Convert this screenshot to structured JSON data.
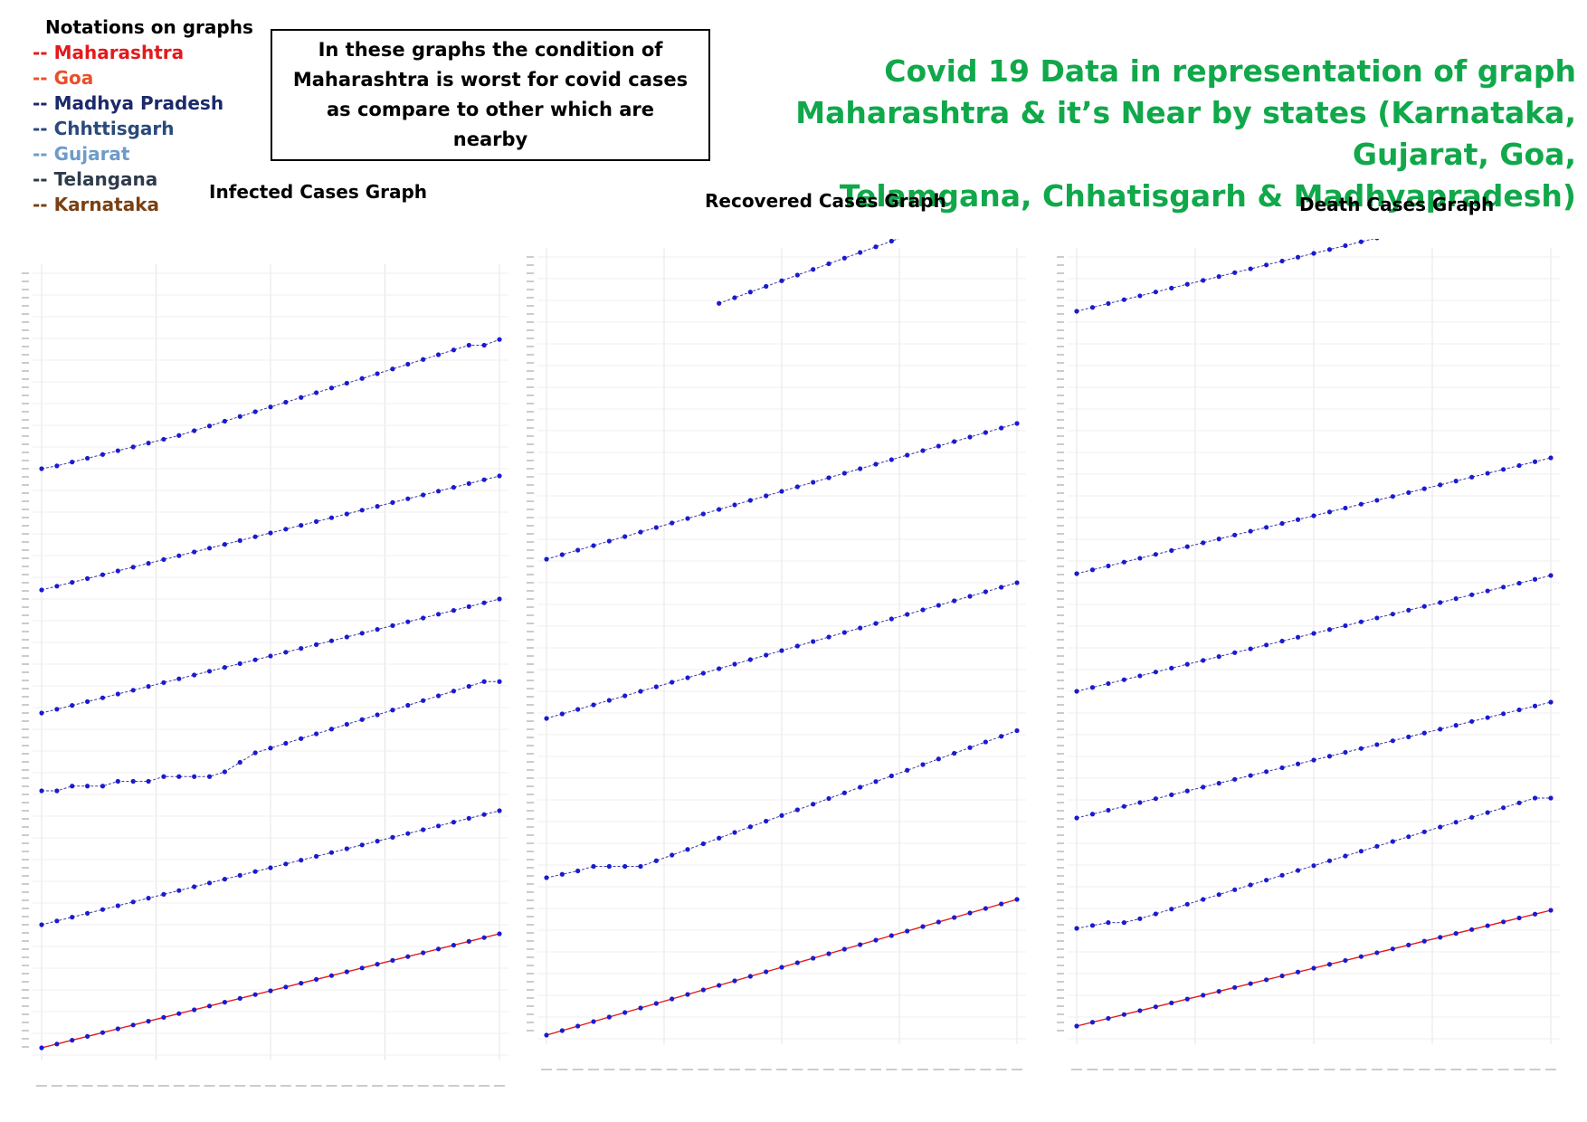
{
  "legend": {
    "title": "Notations on graphs",
    "items": [
      {
        "label": "-- Maharashtra",
        "color": "#e31a1c"
      },
      {
        "label": "-- Goa",
        "color": "#e8502a"
      },
      {
        "label": "-- Madhya Pradesh",
        "color": "#1c2a6b"
      },
      {
        "label": "-- Chhttisgarh",
        "color": "#2a4a7a"
      },
      {
        "label": "-- Gujarat",
        "color": "#6f9bc8"
      },
      {
        "label": "-- Telangana",
        "color": "#2f3b4b"
      },
      {
        "label": "-- Karnataka",
        "color": "#7a3f12"
      }
    ]
  },
  "note": {
    "text": "In these graphs the condition of Maharashtra is  worst for covid cases as compare to other which are nearby"
  },
  "header": {
    "line1": "Covid  19 Data in representation of graph",
    "line2": "Maharashtra & it’s Near by states (Karnataka, Gujarat, Goa,",
    "line3": "Telamgana, Chhatisgarh & Madhyapradesh)"
  },
  "colors": {
    "title_green": "#10a84a",
    "marker_blue": "#1a1ad0",
    "maharashtra_line": "#e31a1c"
  },
  "chart_data": [
    {
      "type": "line",
      "title": "Infected Cases Graph",
      "series": [
        {
          "values": [
            null,
            null,
            null,
            null,
            null,
            null,
            null,
            null,
            null,
            null,
            null,
            null,
            1.6,
            1.62,
            1.64,
            1.67,
            1.7,
            1.73,
            1.76,
            1.79,
            1.82,
            1.86,
            1.9,
            1.94,
            1.98,
            2.02,
            2.06,
            2.1,
            2.14,
            2.18,
            2.22
          ]
        },
        {
          "values": [
            0.0,
            0.03,
            0.07,
            0.11,
            0.15,
            0.19,
            0.23,
            0.27,
            0.31,
            0.35,
            0.4,
            0.45,
            0.5,
            0.55,
            0.6,
            0.65,
            0.7,
            0.75,
            0.8,
            0.85,
            0.9,
            0.95,
            1.0,
            1.05,
            1.1,
            1.15,
            1.2,
            1.25,
            1.3,
            1.3,
            1.36
          ]
        },
        {
          "values": [
            0.0,
            0.04,
            0.08,
            0.12,
            0.16,
            0.2,
            0.24,
            0.28,
            0.32,
            0.36,
            0.4,
            0.44,
            0.48,
            0.52,
            0.56,
            0.6,
            0.64,
            0.68,
            0.72,
            0.76,
            0.8,
            0.84,
            0.88,
            0.92,
            0.96,
            1.0,
            1.04,
            1.08,
            1.12,
            1.16,
            1.2
          ]
        },
        {
          "values": [
            0.0,
            0.04,
            0.08,
            0.12,
            0.16,
            0.2,
            0.24,
            0.28,
            0.32,
            0.36,
            0.4,
            0.44,
            0.48,
            0.52,
            0.56,
            0.6,
            0.64,
            0.68,
            0.72,
            0.76,
            0.8,
            0.84,
            0.88,
            0.92,
            0.96,
            1.0,
            1.04,
            1.08,
            1.12,
            1.16,
            1.2
          ]
        },
        {
          "values": [
            0.0,
            0.0,
            0.05,
            0.05,
            0.05,
            0.1,
            0.1,
            0.1,
            0.15,
            0.15,
            0.15,
            0.15,
            0.2,
            0.3,
            0.4,
            0.45,
            0.5,
            0.55,
            0.6,
            0.65,
            0.7,
            0.75,
            0.8,
            0.85,
            0.9,
            0.95,
            1.0,
            1.05,
            1.1,
            1.15,
            1.15
          ]
        },
        {
          "values": [
            0.0,
            0.04,
            0.08,
            0.12,
            0.16,
            0.2,
            0.24,
            0.28,
            0.32,
            0.36,
            0.4,
            0.44,
            0.48,
            0.52,
            0.56,
            0.6,
            0.64,
            0.68,
            0.72,
            0.76,
            0.8,
            0.84,
            0.88,
            0.92,
            0.96,
            1.0,
            1.04,
            1.08,
            1.12,
            1.16,
            1.2
          ]
        },
        {
          "values": [
            0.0,
            0.04,
            0.08,
            0.12,
            0.16,
            0.2,
            0.24,
            0.28,
            0.32,
            0.36,
            0.4,
            0.44,
            0.48,
            0.52,
            0.56,
            0.6,
            0.64,
            0.68,
            0.72,
            0.76,
            0.8,
            0.84,
            0.88,
            0.92,
            0.96,
            1.0,
            1.04,
            1.08,
            1.12,
            1.16,
            1.2
          ]
        }
      ]
    },
    {
      "type": "line",
      "title": "Recovered Cases Graph",
      "series": [
        {
          "values": [
            null,
            null,
            null,
            null,
            null,
            null,
            null,
            null,
            null,
            null,
            null,
            0.55,
            0.6,
            0.65,
            0.7,
            0.75,
            0.8,
            0.85,
            0.9,
            0.95,
            1.0,
            1.05,
            1.1,
            1.15,
            1.2,
            1.25,
            1.3,
            1.35,
            1.4,
            1.45,
            1.5
          ]
        },
        {
          "values": [
            0.0,
            0.04,
            0.08,
            0.12,
            0.16,
            0.2,
            0.24,
            0.28,
            0.32,
            0.36,
            0.4,
            0.44,
            0.48,
            0.52,
            0.56,
            0.6,
            0.64,
            0.68,
            0.72,
            0.76,
            0.8,
            0.84,
            0.88,
            0.92,
            0.96,
            1.0,
            1.04,
            1.08,
            1.12,
            1.16,
            1.2
          ]
        },
        {
          "values": [
            0.0,
            0.04,
            0.08,
            0.12,
            0.16,
            0.2,
            0.24,
            0.28,
            0.32,
            0.36,
            0.4,
            0.44,
            0.48,
            0.52,
            0.56,
            0.6,
            0.64,
            0.68,
            0.72,
            0.76,
            0.8,
            0.84,
            0.88,
            0.92,
            0.96,
            1.0,
            1.04,
            1.08,
            1.12,
            1.16,
            1.2
          ]
        },
        {
          "values": [
            0.0,
            0.03,
            0.06,
            0.1,
            0.1,
            0.1,
            0.1,
            0.15,
            0.2,
            0.25,
            0.3,
            0.35,
            0.4,
            0.45,
            0.5,
            0.55,
            0.6,
            0.65,
            0.7,
            0.75,
            0.8,
            0.85,
            0.9,
            0.95,
            1.0,
            1.05,
            1.1,
            1.15,
            1.2,
            1.25,
            1.3
          ]
        },
        {
          "values": [
            0.0,
            0.04,
            0.08,
            0.12,
            0.16,
            0.2,
            0.24,
            0.28,
            0.32,
            0.36,
            0.4,
            0.44,
            0.48,
            0.52,
            0.56,
            0.6,
            0.64,
            0.68,
            0.72,
            0.76,
            0.8,
            0.84,
            0.88,
            0.92,
            0.96,
            1.0,
            1.04,
            1.08,
            1.12,
            1.16,
            1.2
          ]
        }
      ]
    },
    {
      "type": "line",
      "title": "Death Cases Graph",
      "series": [
        {
          "values": [
            0.0,
            0.04,
            0.08,
            0.12,
            0.16,
            0.2,
            0.24,
            0.28,
            0.32,
            0.36,
            0.4,
            0.44,
            0.48,
            0.52,
            0.56,
            0.6,
            0.64,
            0.68,
            0.72,
            0.76,
            0.8,
            0.84,
            0.88,
            0.92,
            0.96,
            1.0,
            1.04,
            1.08,
            1.12,
            1.16,
            1.2
          ]
        },
        {
          "values": [
            0.0,
            0.04,
            0.08,
            0.12,
            0.16,
            0.2,
            0.24,
            0.28,
            0.32,
            0.36,
            0.4,
            0.44,
            0.48,
            0.52,
            0.56,
            0.6,
            0.64,
            0.68,
            0.72,
            0.76,
            0.8,
            0.84,
            0.88,
            0.92,
            0.96,
            1.0,
            1.04,
            1.08,
            1.12,
            1.16,
            1.2
          ]
        },
        {
          "values": [
            0.0,
            0.04,
            0.08,
            0.12,
            0.16,
            0.2,
            0.24,
            0.28,
            0.32,
            0.36,
            0.4,
            0.44,
            0.48,
            0.52,
            0.56,
            0.6,
            0.64,
            0.68,
            0.72,
            0.76,
            0.8,
            0.84,
            0.88,
            0.92,
            0.96,
            1.0,
            1.04,
            1.08,
            1.12,
            1.16,
            1.2
          ]
        },
        {
          "values": [
            0.0,
            0.04,
            0.08,
            0.12,
            0.16,
            0.2,
            0.24,
            0.28,
            0.32,
            0.36,
            0.4,
            0.44,
            0.48,
            0.52,
            0.56,
            0.6,
            0.64,
            0.68,
            0.72,
            0.76,
            0.8,
            0.84,
            0.88,
            0.92,
            0.96,
            1.0,
            1.04,
            1.08,
            1.12,
            1.16,
            1.2
          ]
        },
        {
          "values": [
            0.0,
            0.03,
            0.06,
            0.06,
            0.1,
            0.15,
            0.2,
            0.25,
            0.3,
            0.35,
            0.4,
            0.45,
            0.5,
            0.55,
            0.6,
            0.65,
            0.7,
            0.75,
            0.8,
            0.85,
            0.9,
            0.95,
            1.0,
            1.05,
            1.1,
            1.15,
            1.2,
            1.25,
            1.3,
            1.35,
            1.35
          ]
        },
        {
          "values": [
            0.0,
            0.04,
            0.08,
            0.12,
            0.16,
            0.2,
            0.24,
            0.28,
            0.32,
            0.36,
            0.4,
            0.44,
            0.48,
            0.52,
            0.56,
            0.6,
            0.64,
            0.68,
            0.72,
            0.76,
            0.8,
            0.84,
            0.88,
            0.92,
            0.96,
            1.0,
            1.04,
            1.08,
            1.12,
            1.16,
            1.2
          ]
        }
      ]
    }
  ]
}
